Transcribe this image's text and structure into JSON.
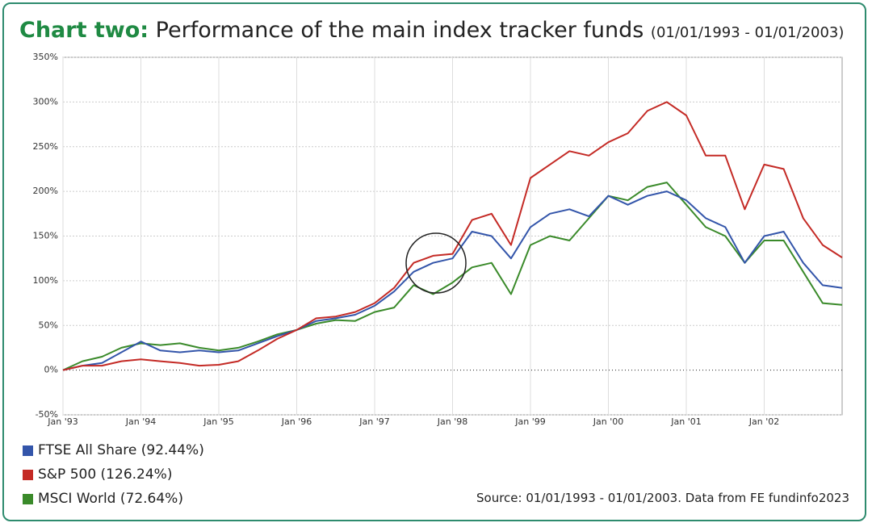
{
  "chart_data": {
    "type": "line",
    "title_label": "Chart two:",
    "title": "Performance of the main index tracker funds",
    "subtitle": "(01/01/1993 - 01/01/2003)",
    "source": "Source: 01/01/1993 - 01/01/2003. Data from FE fundinfo2023",
    "x": [
      "1993-01",
      "1993-04",
      "1993-07",
      "1993-10",
      "1994-01",
      "1994-04",
      "1994-07",
      "1994-10",
      "1995-01",
      "1995-04",
      "1995-07",
      "1995-10",
      "1996-01",
      "1996-04",
      "1996-07",
      "1996-10",
      "1997-01",
      "1997-04",
      "1997-07",
      "1997-10",
      "1998-01",
      "1998-04",
      "1998-07",
      "1998-10",
      "1999-01",
      "1999-04",
      "1999-07",
      "1999-10",
      "2000-01",
      "2000-04",
      "2000-07",
      "2000-10",
      "2001-01",
      "2001-04",
      "2001-07",
      "2001-10",
      "2002-01",
      "2002-04",
      "2002-07",
      "2002-10",
      "2003-01"
    ],
    "xlim": [
      "1993-01",
      "2003-01"
    ],
    "xticks": [
      {
        "value": "1993-01",
        "label": "Jan '93"
      },
      {
        "value": "1994-01",
        "label": "Jan '94"
      },
      {
        "value": "1995-01",
        "label": "Jan '95"
      },
      {
        "value": "1996-01",
        "label": "Jan '96"
      },
      {
        "value": "1997-01",
        "label": "Jan '97"
      },
      {
        "value": "1998-01",
        "label": "Jan '98"
      },
      {
        "value": "1999-01",
        "label": "Jan '99"
      },
      {
        "value": "2000-01",
        "label": "Jan '00"
      },
      {
        "value": "2001-01",
        "label": "Jan '01"
      },
      {
        "value": "2002-01",
        "label": "Jan '02"
      }
    ],
    "ylim": [
      -50,
      350
    ],
    "yticks": [
      {
        "value": -50,
        "label": "-50%"
      },
      {
        "value": 0,
        "label": "0%"
      },
      {
        "value": 50,
        "label": "50%"
      },
      {
        "value": 100,
        "label": "100%"
      },
      {
        "value": 150,
        "label": "150%"
      },
      {
        "value": 200,
        "label": "200%"
      },
      {
        "value": 250,
        "label": "250%"
      },
      {
        "value": 300,
        "label": "300%"
      },
      {
        "value": 350,
        "label": "350%"
      }
    ],
    "grid": true,
    "series": [
      {
        "name": "FTSE All Share (92.44%)",
        "color": "#3355aa",
        "values": [
          0,
          5,
          8,
          20,
          32,
          22,
          20,
          22,
          20,
          22,
          30,
          38,
          45,
          55,
          58,
          62,
          72,
          88,
          110,
          120,
          125,
          155,
          150,
          125,
          160,
          175,
          180,
          172,
          195,
          185,
          195,
          200,
          190,
          170,
          160,
          120,
          150,
          155,
          120,
          95,
          92
        ]
      },
      {
        "name": "S&P 500 (126.24%)",
        "color": "#c42a25",
        "values": [
          0,
          5,
          5,
          10,
          12,
          10,
          8,
          5,
          6,
          10,
          22,
          35,
          45,
          58,
          60,
          65,
          75,
          92,
          120,
          128,
          130,
          168,
          175,
          140,
          215,
          230,
          245,
          240,
          255,
          265,
          290,
          300,
          285,
          240,
          240,
          180,
          230,
          225,
          170,
          140,
          126
        ]
      },
      {
        "name": "MSCI World (72.64%)",
        "color": "#3a8a2a",
        "values": [
          0,
          10,
          15,
          25,
          30,
          28,
          30,
          25,
          22,
          25,
          32,
          40,
          45,
          52,
          56,
          55,
          65,
          70,
          95,
          85,
          98,
          115,
          120,
          85,
          140,
          150,
          145,
          170,
          195,
          190,
          205,
          210,
          185,
          160,
          150,
          120,
          145,
          145,
          110,
          75,
          73
        ]
      }
    ]
  }
}
